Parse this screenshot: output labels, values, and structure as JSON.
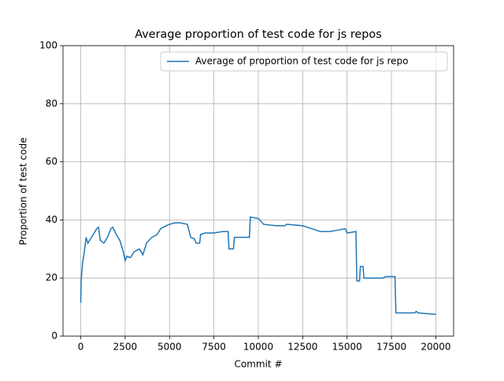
{
  "chart_data": {
    "type": "line",
    "title": "Average proportion of test code for js repos",
    "x_label": "Commit #",
    "y_label": "Proportion of test code",
    "x": [
      0,
      20,
      100,
      200,
      300,
      400,
      500,
      700,
      900,
      1000,
      1100,
      1300,
      1500,
      1700,
      1800,
      2000,
      2200,
      2400,
      2500,
      2600,
      2800,
      3000,
      3300,
      3500,
      3700,
      4000,
      4300,
      4500,
      4800,
      5000,
      5300,
      5600,
      6000,
      6200,
      6400,
      6500,
      6700,
      6750,
      7000,
      7500,
      8000,
      8300,
      8350,
      8600,
      8650,
      9500,
      9550,
      10000,
      10300,
      11000,
      11500,
      11600,
      12500,
      13000,
      13500,
      14000,
      14500,
      14900,
      15000,
      15500,
      15550,
      15700,
      15750,
      15900,
      15950,
      17000,
      17200,
      17700,
      17750,
      18000,
      18800,
      18900,
      19000,
      20000
    ],
    "series": [
      {
        "name": "Average of proportion of test code for js repo",
        "color": "#1f77b4",
        "values": [
          11.5,
          19,
          25,
          29,
          34,
          32,
          33,
          35,
          37,
          37.5,
          33,
          32,
          34,
          37,
          37.5,
          35,
          33,
          29,
          26,
          27.5,
          27,
          29,
          30,
          28,
          32,
          34,
          35,
          37,
          38,
          38.5,
          39,
          39,
          38.5,
          34,
          33.5,
          32,
          32,
          35,
          35.5,
          35.5,
          36,
          36,
          30,
          30,
          34,
          34,
          41,
          40.5,
          38.5,
          38,
          38,
          38.5,
          38,
          37,
          36,
          36,
          36.5,
          37,
          35.5,
          36,
          19,
          19,
          24,
          24,
          20,
          20,
          20.5,
          20.5,
          8,
          8,
          8,
          8.5,
          8,
          7.5
        ]
      }
    ],
    "xlim": [
      -1000,
      21000
    ],
    "ylim": [
      0,
      100
    ],
    "xticks": [
      0,
      2500,
      5000,
      7500,
      10000,
      12500,
      15000,
      17500,
      20000
    ],
    "yticks": [
      0,
      20,
      40,
      60,
      80,
      100
    ],
    "grid": true,
    "legend": "upper right"
  }
}
